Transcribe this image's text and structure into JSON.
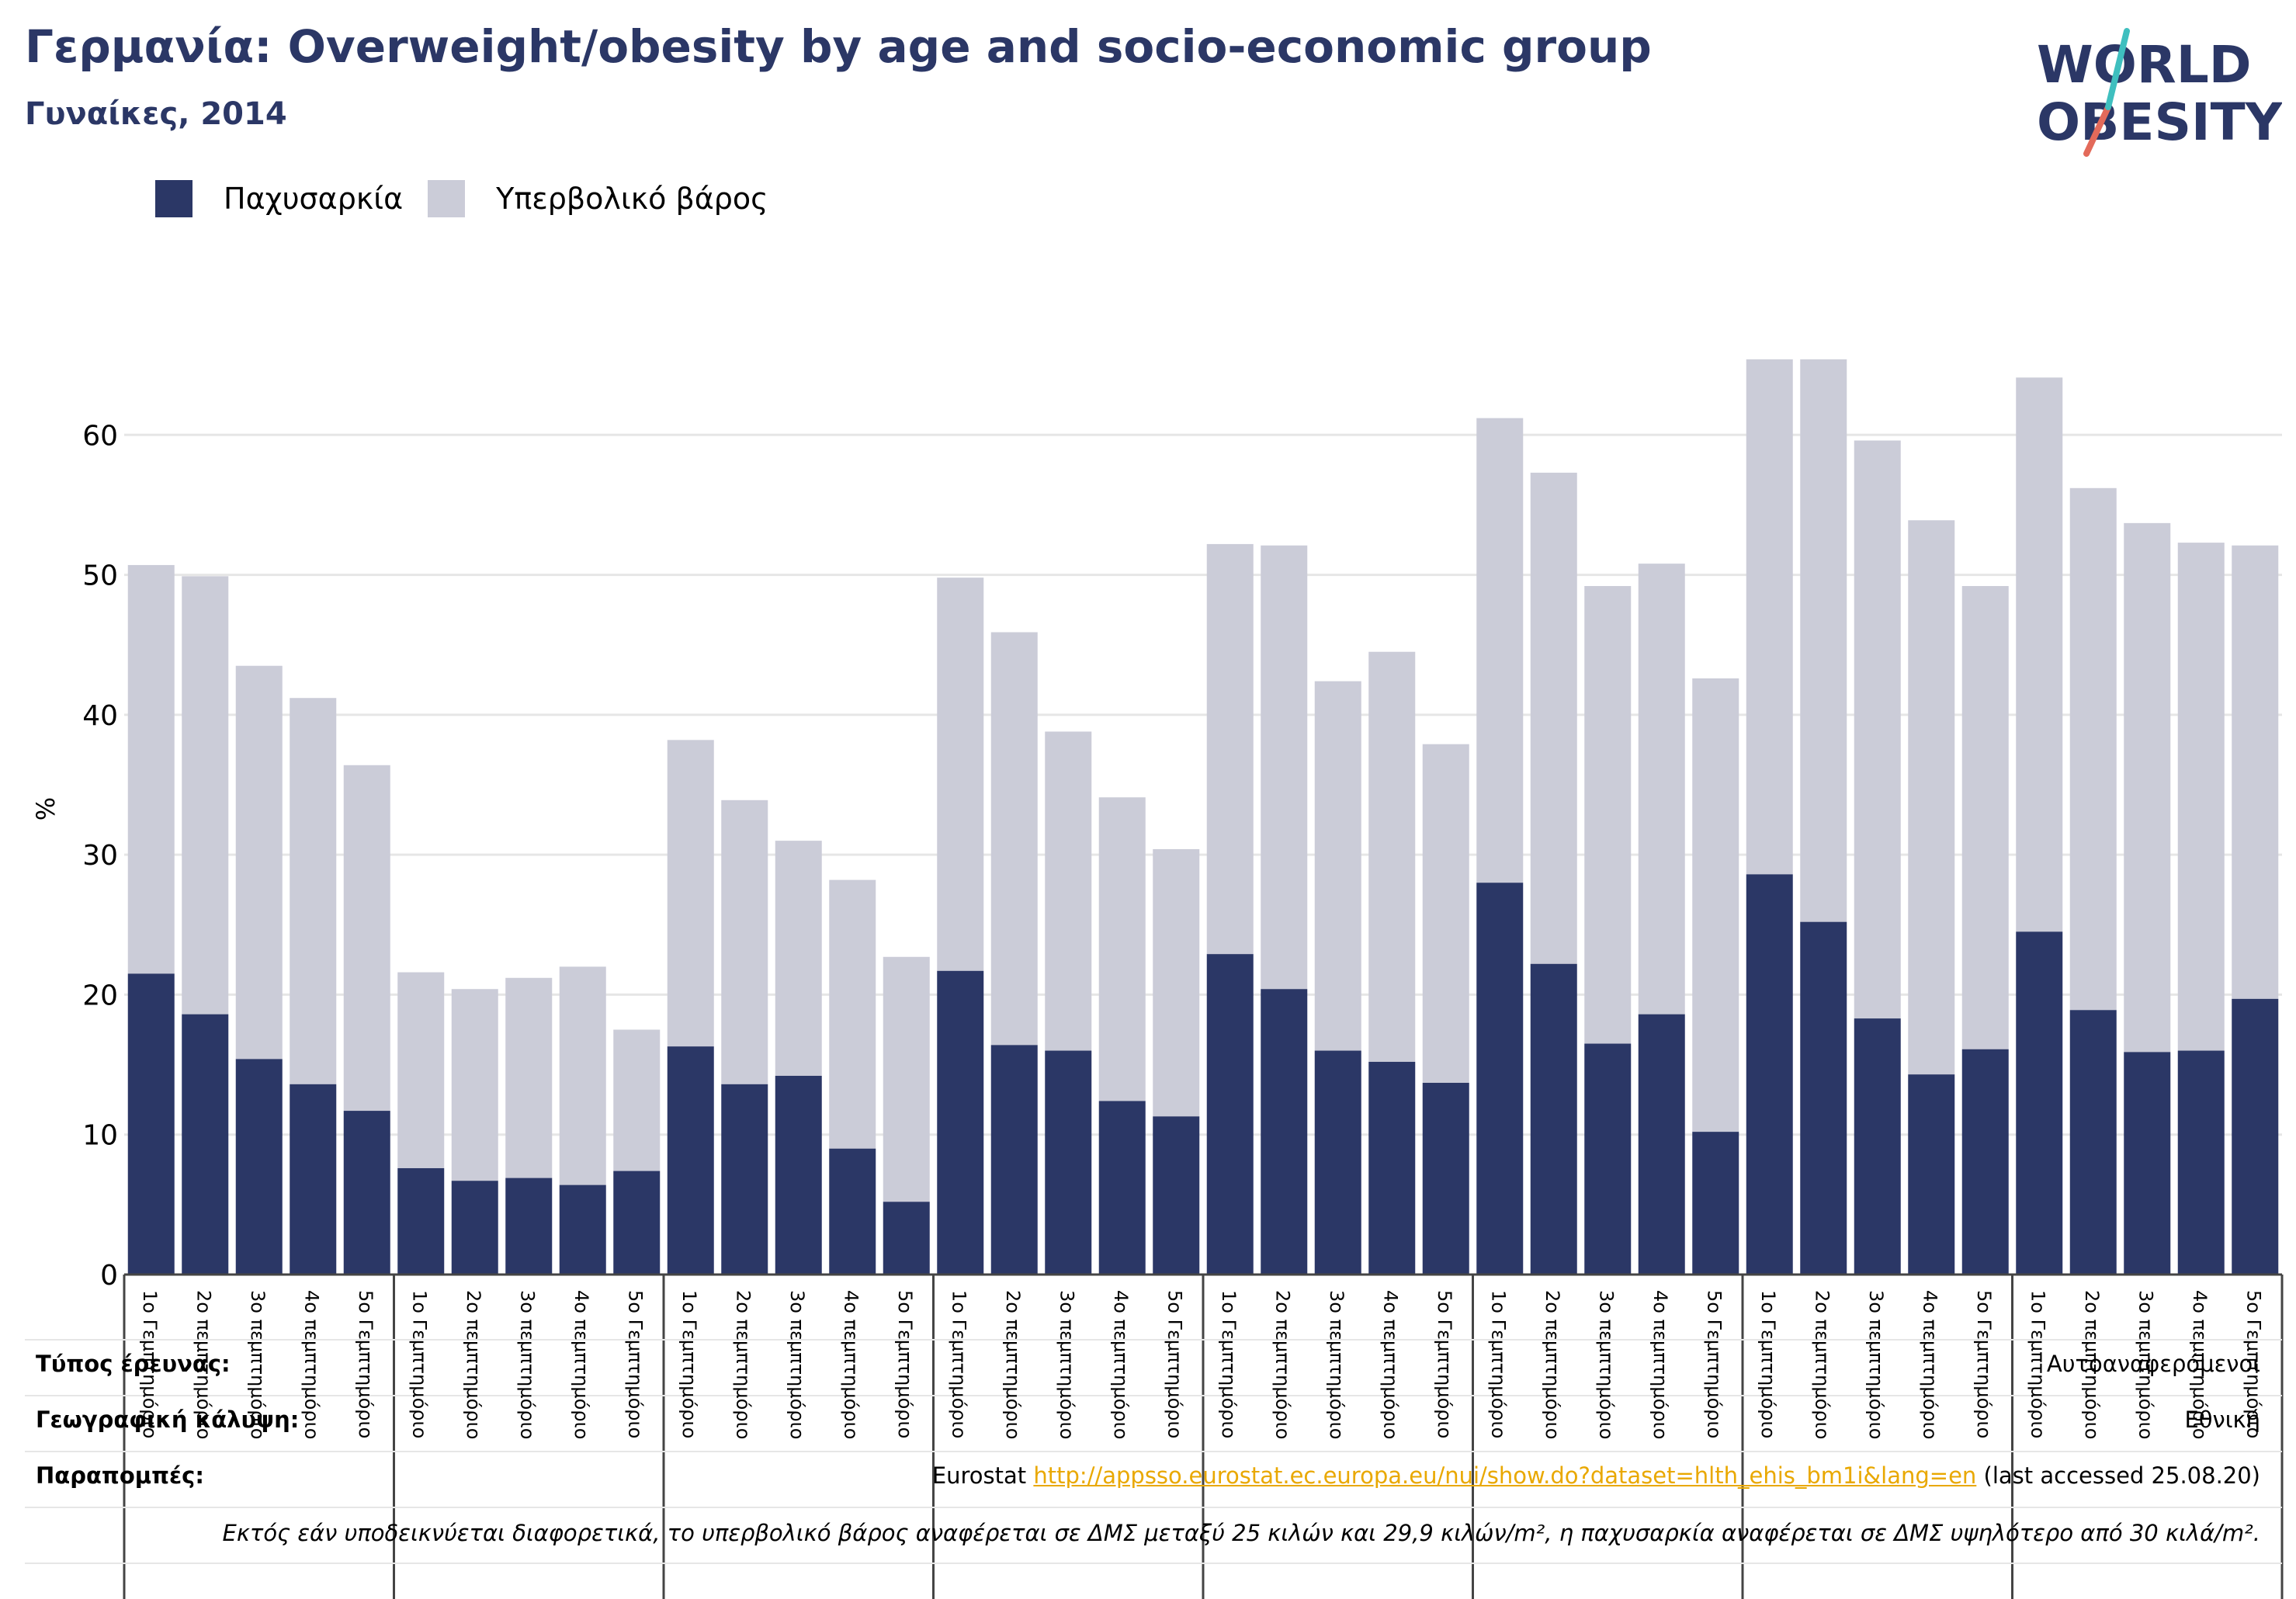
{
  "title": "Γερμανία: Overweight/obesity by age and socio-economic group",
  "subtitle": "Γυναίκες, 2014",
  "logo": {
    "line1": "WORLD",
    "line2": "OBESITY"
  },
  "legend": [
    {
      "label": "Παχυσαρκία",
      "color": "#2b3766"
    },
    {
      "label": "Υπερβολικό βάρος",
      "color": "#cbccd8"
    }
  ],
  "colors": {
    "obesity": "#2b3766",
    "overweight": "#cbccd8",
    "grid": "#e6e6e6",
    "accent_text": "#2b3766",
    "link": "#e9a800"
  },
  "chart_data": {
    "type": "bar",
    "stacked": true,
    "ylabel": "%",
    "ylim": [
      0,
      70
    ],
    "yticks": [
      0,
      10,
      20,
      30,
      40,
      50,
      60
    ],
    "grid": true,
    "legend_position": "top-left",
    "categories": [
      "1ο Γεμπτημόριο",
      "2ο πεμπτημόριο",
      "3ο πεμπτημόριο",
      "4ο πεμπτημόριο",
      "5ο Γεμπτημόριο",
      "1ο Γεμπτημόριο",
      "2ο πεμπτημόριο",
      "3ο πεμπτημόριο",
      "4ο πεμπτημόριο",
      "5ο Γεμπτημόριο",
      "1ο Γεμπτημόριο",
      "2ο πεμπτημόριο",
      "3ο πεμπτημόριο",
      "4ο πεμπτημόριο",
      "5ο Γεμπτημόριο",
      "1ο Γεμπτημόριο",
      "2ο πεμπτημόριο",
      "3ο πεμπτημόριο",
      "4ο πεμπτημόριο",
      "5ο Γεμπτημόριο",
      "1ο Γεμπτημόριο",
      "2ο πεμπτημόριο",
      "3ο πεμπτημόριο",
      "4ο πεμπτημόριο",
      "5ο Γεμπτημόριο",
      "1ο Γεμπτημόριο",
      "2ο πεμπτημόριο",
      "3ο πεμπτημόριο",
      "4ο πεμπτημόριο",
      "5ο Γεμπτημόριο",
      "1ο Γεμπτημόριο",
      "2ο πεμπτημόριο",
      "3ο πεμπτημόριο",
      "4ο πεμπτημόριο",
      "5ο Γεμπτημόριο",
      "1ο Γεμπτημόριο",
      "2ο πεμπτημόριο",
      "3ο πεμπτημόριο",
      "4ο πεμπτημόριο",
      "5ο Γεμπτημόριο"
    ],
    "series": [
      {
        "name": "Παχυσαρκία",
        "values": [
          21.5,
          18.6,
          15.4,
          13.6,
          11.7,
          7.6,
          6.7,
          6.9,
          6.4,
          7.4,
          16.3,
          13.6,
          14.2,
          9.0,
          5.2,
          21.7,
          16.4,
          16.0,
          12.4,
          11.3,
          22.9,
          20.4,
          16.0,
          15.2,
          13.7,
          28.0,
          22.2,
          16.5,
          18.6,
          10.2,
          28.6,
          25.2,
          18.3,
          14.3,
          16.1,
          24.5,
          18.9,
          15.9,
          16.0,
          19.7
        ]
      },
      {
        "name": "Υπερβολικό βάρος",
        "values": [
          29.2,
          31.3,
          28.1,
          27.6,
          24.7,
          14.0,
          13.7,
          14.3,
          15.6,
          10.1,
          21.9,
          20.3,
          16.8,
          19.2,
          17.5,
          28.1,
          29.5,
          22.8,
          21.7,
          19.1,
          29.3,
          31.7,
          26.4,
          29.3,
          24.2,
          33.2,
          35.1,
          32.7,
          32.2,
          32.4,
          36.8,
          40.2,
          41.3,
          39.6,
          33.1,
          39.6,
          37.3,
          37.8,
          36.3,
          32.4
        ]
      }
    ]
  },
  "metadata": {
    "survey_type": {
      "label": "Τύπος έρευνας:",
      "value": "Αυτοαναφερόμενοι"
    },
    "coverage": {
      "label": "Γεωγραφική κάλυψη:",
      "value": "Εθνική"
    },
    "references": {
      "label": "Παραπομπές:",
      "source": "Eurostat",
      "url": "http://appsso.eurostat.ec.europa.eu/nui/show.do?dataset=hlth_ehis_bm1i&lang=en",
      "accessed": "(last accessed 25.08.20)"
    },
    "note": "Εκτός εάν υποδεικνύεται διαφορετικά, το υπερβολικό βάρος αναφέρεται σε ΔΜΣ μεταξύ 25 κιλών και 29,9 κιλών/m², η παχυσαρκία αναφέρεται σε ΔΜΣ υψηλότερο από 30 κιλά/m²."
  }
}
